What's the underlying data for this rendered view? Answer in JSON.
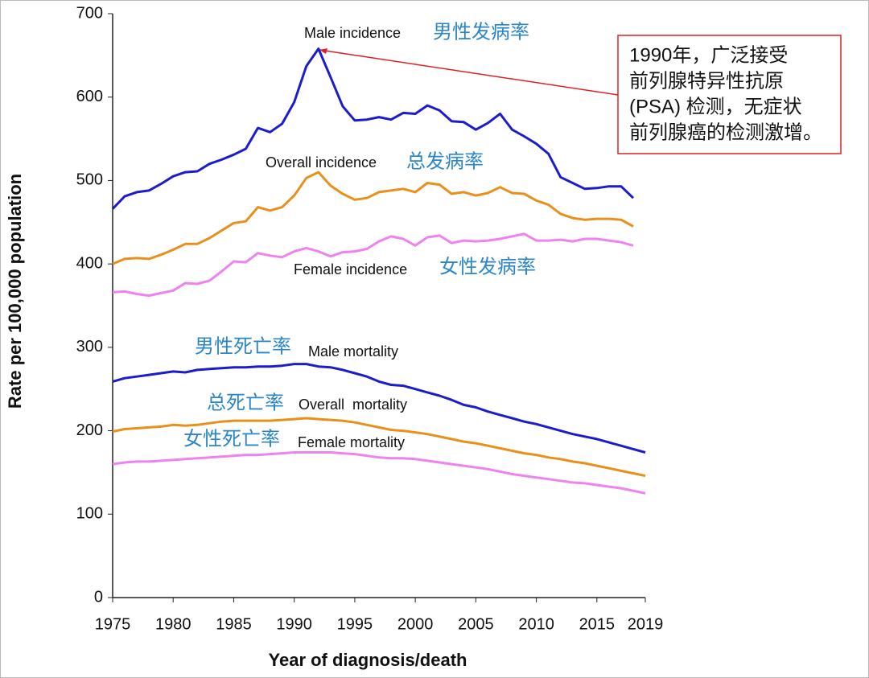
{
  "chart_data": {
    "type": "line",
    "x_label": "Year of diagnosis/death",
    "y_label": "Rate per 100,000 population",
    "x": [
      1975,
      1976,
      1977,
      1978,
      1979,
      1980,
      1981,
      1982,
      1983,
      1984,
      1985,
      1986,
      1987,
      1988,
      1989,
      1990,
      1991,
      1992,
      1993,
      1994,
      1995,
      1996,
      1997,
      1998,
      1999,
      2000,
      2001,
      2002,
      2003,
      2004,
      2005,
      2006,
      2007,
      2008,
      2009,
      2010,
      2011,
      2012,
      2013,
      2014,
      2015,
      2016,
      2017,
      2018,
      2019
    ],
    "xlim": [
      1975,
      2019
    ],
    "xticks": [
      1975,
      1980,
      1985,
      1990,
      1995,
      2000,
      2005,
      2010,
      2015,
      2019
    ],
    "ylim": [
      0,
      700
    ],
    "yticks": [
      0,
      100,
      200,
      300,
      400,
      500,
      600,
      700
    ],
    "series": [
      {
        "name": "Male incidence",
        "label_zh": "男性发病率",
        "color": "#1c1ccc",
        "values": [
          466,
          481,
          486,
          488,
          496,
          505,
          510,
          511,
          520,
          525,
          531,
          538,
          563,
          558,
          568,
          594,
          637,
          658,
          624,
          589,
          572,
          573,
          576,
          573,
          581,
          580,
          590,
          584,
          571,
          570,
          561,
          569,
          580,
          561,
          553,
          544,
          532,
          504,
          497,
          490,
          491,
          493,
          493,
          479,
          null
        ]
      },
      {
        "name": "Overall incidence",
        "label_zh": "总发病率",
        "color": "#e8901a",
        "values": [
          400,
          406,
          407,
          406,
          411,
          417,
          424,
          424,
          431,
          440,
          449,
          451,
          468,
          464,
          468,
          482,
          503,
          510,
          494,
          484,
          477,
          479,
          486,
          488,
          490,
          486,
          497,
          495,
          484,
          486,
          482,
          485,
          492,
          485,
          484,
          476,
          471,
          460,
          455,
          453,
          454,
          454,
          453,
          445,
          null
        ]
      },
      {
        "name": "Female incidence",
        "label_zh": "女性发病率",
        "color": "#ee82ee",
        "values": [
          366,
          367,
          364,
          362,
          365,
          368,
          377,
          376,
          380,
          391,
          403,
          402,
          413,
          410,
          408,
          415,
          419,
          415,
          409,
          414,
          415,
          418,
          427,
          433,
          430,
          422,
          432,
          434,
          425,
          428,
          427,
          428,
          430,
          433,
          436,
          428,
          428,
          429,
          427,
          430,
          430,
          428,
          426,
          422,
          null
        ]
      },
      {
        "name": "Male mortality",
        "label_zh": "男性死亡率",
        "color": "#1c1ccc",
        "values": [
          259,
          263,
          265,
          267,
          269,
          271,
          270,
          273,
          274,
          275,
          276,
          276,
          277,
          277,
          278,
          280,
          280,
          277,
          276,
          273,
          269,
          265,
          259,
          255,
          254,
          250,
          246,
          242,
          237,
          231,
          228,
          223,
          219,
          215,
          211,
          208,
          204,
          200,
          196,
          193,
          190,
          186,
          182,
          178,
          174
        ]
      },
      {
        "name": "Overall  mortality",
        "label_zh": "总死亡率",
        "color": "#e8901a",
        "values": [
          199,
          202,
          203,
          204,
          205,
          207,
          206,
          207,
          209,
          211,
          212,
          212,
          212,
          212,
          213,
          214,
          215,
          214,
          213,
          212,
          210,
          207,
          204,
          201,
          200,
          198,
          196,
          193,
          190,
          187,
          185,
          182,
          179,
          176,
          173,
          171,
          168,
          166,
          163,
          161,
          158,
          155,
          152,
          149,
          146
        ]
      },
      {
        "name": "Female mortality",
        "label_zh": "女性死亡率",
        "color": "#ee82ee",
        "values": [
          160,
          162,
          163,
          163,
          164,
          165,
          166,
          167,
          168,
          169,
          170,
          171,
          171,
          172,
          173,
          174,
          174,
          174,
          174,
          173,
          172,
          170,
          168,
          167,
          167,
          166,
          164,
          162,
          160,
          158,
          156,
          154,
          151,
          148,
          146,
          144,
          142,
          140,
          138,
          137,
          135,
          133,
          131,
          128,
          125
        ]
      }
    ],
    "callout": [
      "1990年，广泛接受",
      "前列腺特异性抗原",
      "(PSA) 检测，无症状",
      "前列腺癌的检测激增。"
    ]
  }
}
